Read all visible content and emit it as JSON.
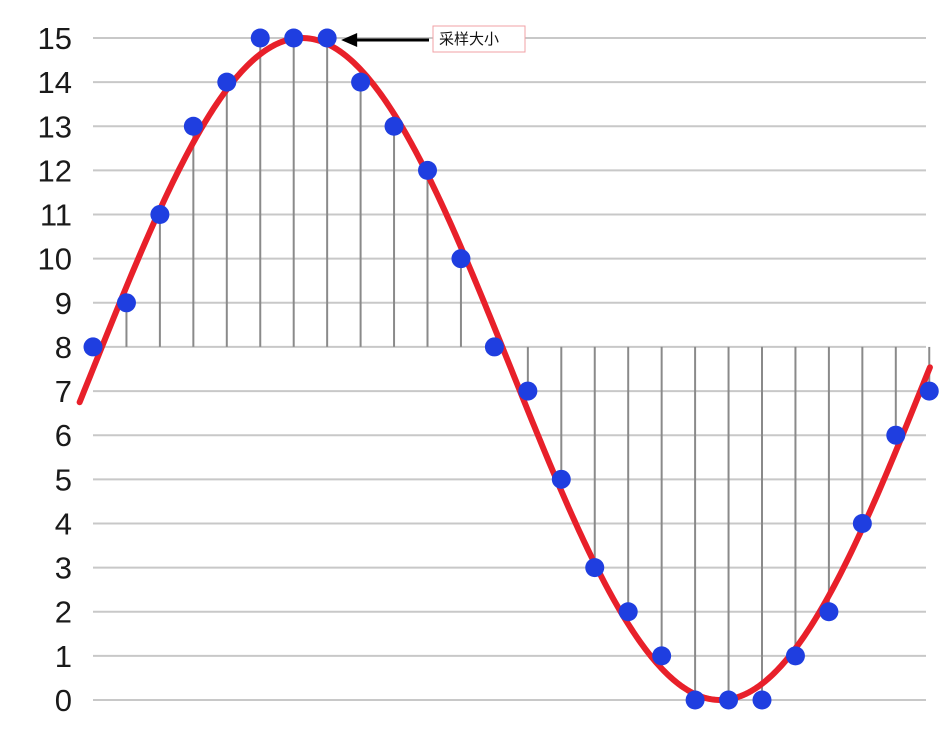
{
  "chart_data": {
    "type": "line",
    "title": "",
    "xlabel": "",
    "ylabel": "",
    "ylim": [
      0,
      15
    ],
    "yticks": [
      0,
      1,
      2,
      3,
      4,
      5,
      6,
      7,
      8,
      9,
      10,
      11,
      12,
      13,
      14,
      15
    ],
    "grid": "horizontal",
    "baseline": 8,
    "x": [
      0,
      1,
      2,
      3,
      4,
      5,
      6,
      7,
      8,
      9,
      10,
      11,
      12,
      13,
      14,
      15,
      16,
      17,
      18,
      19,
      20,
      21,
      22,
      23,
      24,
      25
    ],
    "series": [
      {
        "kind": "continuous-sine",
        "color": "#e8202a",
        "center": 7.5,
        "amplitude": 7.5,
        "period_samples": 25,
        "phase_samples": 0
      },
      {
        "kind": "samples",
        "color": "#1f3ee0",
        "values": [
          8,
          9,
          11,
          13,
          14,
          15,
          15,
          15,
          14,
          13,
          12,
          10,
          8,
          7,
          5,
          3,
          2,
          1,
          0,
          0,
          0,
          1,
          2,
          4,
          6,
          7
        ]
      }
    ],
    "annotations": [
      {
        "text": "采样大小",
        "points_to_sample_index": 7
      }
    ]
  },
  "colors": {
    "grid": "#c8c8c8",
    "stem": "#8a8a8a",
    "curve": "#e8202a",
    "sample": "#1f3ee0",
    "annotation_border": "#f2a0a6"
  }
}
